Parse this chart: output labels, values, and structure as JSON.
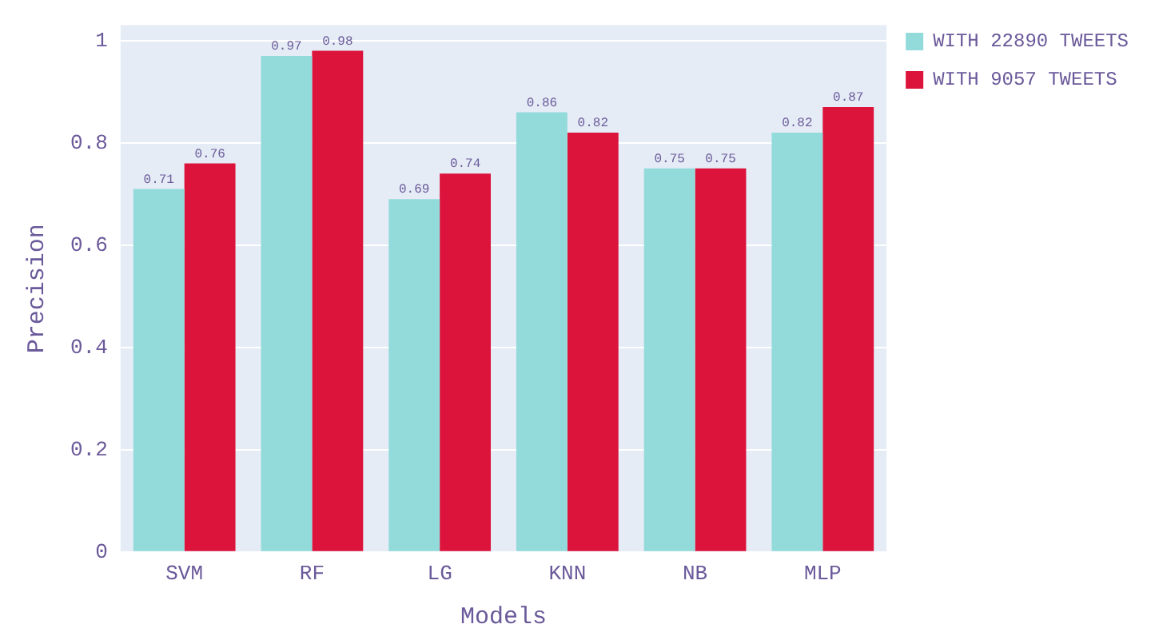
{
  "chart_data": {
    "type": "bar",
    "xlabel": "Models",
    "ylabel": "Precision",
    "categories": [
      "SVM",
      "RF",
      "LG",
      "KNN",
      "NB",
      "MLP"
    ],
    "series": [
      {
        "name": "WITH 22890 TWEETS",
        "color": "#93dbdb",
        "values": [
          0.71,
          0.97,
          0.69,
          0.86,
          0.75,
          0.82
        ]
      },
      {
        "name": "WITH 9057 TWEETS",
        "color": "#dc143c",
        "values": [
          0.76,
          0.98,
          0.74,
          0.82,
          0.75,
          0.87
        ]
      }
    ],
    "ylim": [
      0,
      1.03
    ],
    "yticks": [
      0,
      0.2,
      0.4,
      0.6,
      0.8,
      1
    ],
    "grid": "y",
    "legend": "top right",
    "data_labels": true
  }
}
